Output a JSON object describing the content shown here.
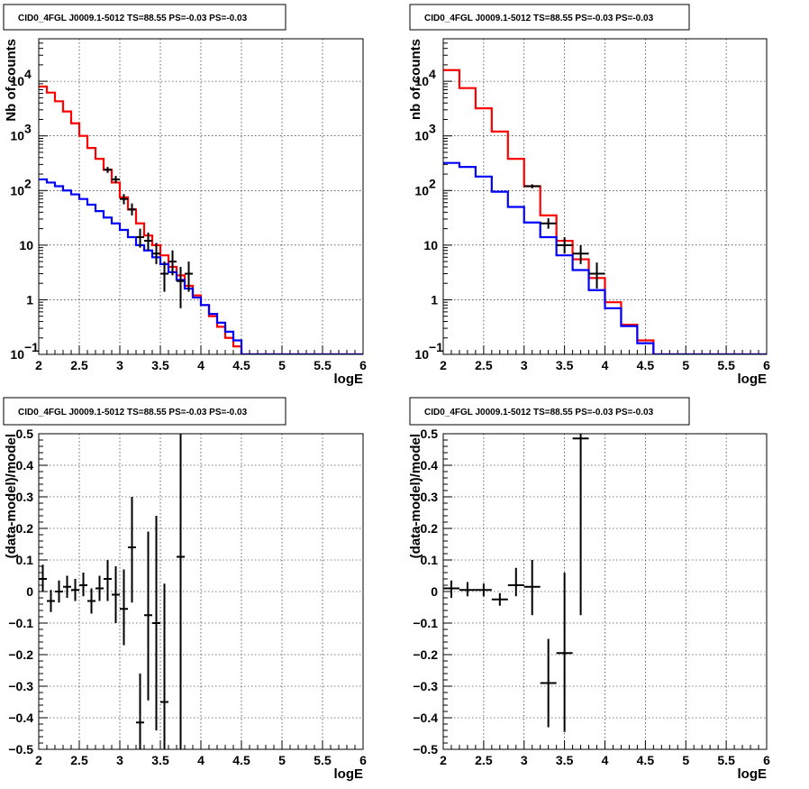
{
  "chart_data": [
    {
      "type": "line",
      "title": "CID0_4FGL J0009.1-5012 TS=88.55 PS=-0.03 PS=-0.03",
      "xlabel": "logE",
      "ylabel": "Nb of counts",
      "xlim": [
        2,
        6
      ],
      "ylim": [
        0.1,
        60000
      ],
      "y_log": true,
      "grid": true,
      "x_ticks": [
        "2",
        "2.5",
        "3",
        "3.5",
        "4",
        "4.5",
        "5",
        "5.5",
        "6"
      ],
      "y_ticks": [
        {
          "v": 0.1,
          "label": "10",
          "sup": "−1"
        },
        {
          "v": 1,
          "label": "1",
          "sup": ""
        },
        {
          "v": 10,
          "label": "10",
          "sup": ""
        },
        {
          "v": 100,
          "label": "10",
          "sup": "2"
        },
        {
          "v": 1000,
          "label": "10",
          "sup": "3"
        },
        {
          "v": 10000,
          "label": "10",
          "sup": "4"
        }
      ],
      "bin_edges": [
        2,
        2.1,
        2.2,
        2.3,
        2.4,
        2.5,
        2.6,
        2.7,
        2.8,
        2.9,
        3,
        3.1,
        3.2,
        3.3,
        3.4,
        3.5,
        3.6,
        3.7,
        3.8,
        3.9,
        4,
        4.1,
        4.2,
        4.3,
        4.4,
        4.5,
        4.6,
        4.7,
        4.8,
        4.9,
        5,
        5.1,
        5.2,
        5.3,
        5.4,
        5.5,
        5.6,
        5.7,
        5.8,
        5.9,
        6
      ],
      "series": [
        {
          "color": "#ff0000",
          "style": "step",
          "values": [
            8000,
            6200,
            4300,
            2800,
            1700,
            1000,
            600,
            380,
            240,
            140,
            75,
            45,
            25,
            15,
            10,
            6.5,
            4,
            2.8,
            1.8,
            1.2,
            0.8,
            0.5,
            0.32,
            0.2,
            0.14,
            0.1,
            0.1,
            0.1,
            0.1,
            0.1,
            0.1,
            0.1,
            0.1,
            0.1,
            0.1,
            0.1,
            0.1,
            0.1,
            0.1,
            0.1
          ]
        },
        {
          "color": "#0000ff",
          "style": "step",
          "values": [
            160,
            140,
            120,
            100,
            85,
            70,
            55,
            42,
            32,
            25,
            19,
            14,
            10,
            8,
            6,
            4.5,
            3.2,
            2.3,
            1.6,
            1.1,
            0.8,
            0.55,
            0.38,
            0.26,
            0.18,
            0.1,
            0.1,
            0.1,
            0.1,
            0.1,
            0.1,
            0.1,
            0.1,
            0.1,
            0.1,
            0.1,
            0.1,
            0.1,
            0.1,
            0.1
          ]
        },
        {
          "color": "#000000",
          "style": "errorbar",
          "points": [
            {
              "x": 2.85,
              "y": 240,
              "lo": 210,
              "hi": 270
            },
            {
              "x": 2.95,
              "y": 160,
              "lo": 138,
              "hi": 185
            },
            {
              "x": 3.05,
              "y": 70,
              "lo": 56,
              "hi": 86
            },
            {
              "x": 3.15,
              "y": 45,
              "lo": 35,
              "hi": 58
            },
            {
              "x": 3.25,
              "y": 14,
              "lo": 9,
              "hi": 20
            },
            {
              "x": 3.35,
              "y": 12,
              "lo": 8,
              "hi": 17
            },
            {
              "x": 3.45,
              "y": 7,
              "lo": 4.5,
              "hi": 11
            },
            {
              "x": 3.55,
              "y": 3,
              "lo": 1.4,
              "hi": 5
            },
            {
              "x": 3.65,
              "y": 5,
              "lo": 2.8,
              "hi": 8
            },
            {
              "x": 3.75,
              "y": 2.2,
              "lo": 0.7,
              "hi": 4
            },
            {
              "x": 3.85,
              "y": 3,
              "lo": 1.4,
              "hi": 5
            }
          ]
        }
      ]
    },
    {
      "type": "line",
      "title": "CID0_4FGL J0009.1-5012 TS=88.55 PS=-0.03 PS=-0.03",
      "xlabel": "logE",
      "ylabel": "nb of counts",
      "xlim": [
        2,
        6
      ],
      "ylim": [
        0.1,
        60000
      ],
      "y_log": true,
      "grid": true,
      "x_ticks": [
        "2",
        "2.5",
        "3",
        "3.5",
        "4",
        "4.5",
        "5",
        "5.5",
        "6"
      ],
      "y_ticks": [
        {
          "v": 0.1,
          "label": "10",
          "sup": "−1"
        },
        {
          "v": 1,
          "label": "1",
          "sup": ""
        },
        {
          "v": 10,
          "label": "10",
          "sup": ""
        },
        {
          "v": 100,
          "label": "10",
          "sup": "2"
        },
        {
          "v": 1000,
          "label": "10",
          "sup": "3"
        },
        {
          "v": 10000,
          "label": "10",
          "sup": "4"
        }
      ],
      "bin_edges": [
        2,
        2.2,
        2.4,
        2.6,
        2.8,
        3,
        3.2,
        3.4,
        3.6,
        3.8,
        4,
        4.2,
        4.4,
        4.6,
        4.8,
        5,
        5.2,
        5.4,
        5.6,
        5.8,
        6
      ],
      "series": [
        {
          "color": "#ff0000",
          "style": "step",
          "values": [
            16000,
            7500,
            3200,
            1200,
            380,
            120,
            35,
            12,
            5.5,
            2.5,
            0.9,
            0.35,
            0.18,
            0.1,
            0.1,
            0.1,
            0.1,
            0.1,
            0.1,
            0.1
          ]
        },
        {
          "color": "#0000ff",
          "style": "step",
          "values": [
            320,
            270,
            180,
            95,
            50,
            26,
            14,
            6.5,
            3.5,
            1.5,
            0.7,
            0.33,
            0.16,
            0.1,
            0.1,
            0.1,
            0.1,
            0.1,
            0.1,
            0.1
          ]
        },
        {
          "color": "#000000",
          "style": "errorbar",
          "points": [
            {
              "x": 3.1,
              "y": 120,
              "lo": 110,
              "hi": 130
            },
            {
              "x": 3.3,
              "y": 25,
              "lo": 20,
              "hi": 31
            },
            {
              "x": 3.5,
              "y": 10,
              "lo": 7,
              "hi": 14
            },
            {
              "x": 3.7,
              "y": 7,
              "lo": 4.5,
              "hi": 10
            },
            {
              "x": 3.9,
              "y": 3,
              "lo": 1.6,
              "hi": 4.8
            }
          ]
        }
      ]
    },
    {
      "type": "scatter",
      "title": "CID0_4FGL J0009.1-5012 TS=88.55 PS=-0.03 PS=-0.03",
      "xlabel": "logE",
      "ylabel": "(data-model)/model",
      "xlim": [
        2,
        6
      ],
      "ylim": [
        -0.5,
        0.5
      ],
      "y_log": false,
      "grid": true,
      "x_ticks": [
        "2",
        "2.5",
        "3",
        "3.5",
        "4",
        "4.5",
        "5",
        "5.5",
        "6"
      ],
      "y_ticks": [
        {
          "v": -0.5,
          "label": "−0.5",
          "sup": ""
        },
        {
          "v": -0.4,
          "label": "−0.4",
          "sup": ""
        },
        {
          "v": -0.3,
          "label": "−0.3",
          "sup": ""
        },
        {
          "v": -0.2,
          "label": "−0.2",
          "sup": ""
        },
        {
          "v": -0.1,
          "label": "−0.1",
          "sup": ""
        },
        {
          "v": 0,
          "label": "0",
          "sup": ""
        },
        {
          "v": 0.1,
          "label": "0.1",
          "sup": ""
        },
        {
          "v": 0.2,
          "label": "0.2",
          "sup": ""
        },
        {
          "v": 0.3,
          "label": "0.3",
          "sup": ""
        },
        {
          "v": 0.4,
          "label": "0.4",
          "sup": ""
        },
        {
          "v": 0.5,
          "label": "0.5",
          "sup": ""
        }
      ],
      "half_width": 0.05,
      "series": [
        {
          "color": "#000000",
          "style": "errorbar",
          "points": [
            {
              "x": 2.05,
              "y": 0.04,
              "lo": 0.0,
              "hi": 0.085
            },
            {
              "x": 2.15,
              "y": -0.03,
              "lo": -0.065,
              "hi": 0.005
            },
            {
              "x": 2.25,
              "y": 0.0,
              "lo": -0.035,
              "hi": 0.035
            },
            {
              "x": 2.35,
              "y": 0.015,
              "lo": -0.02,
              "hi": 0.05
            },
            {
              "x": 2.45,
              "y": 0.005,
              "lo": -0.03,
              "hi": 0.04
            },
            {
              "x": 2.55,
              "y": 0.02,
              "lo": -0.015,
              "hi": 0.06
            },
            {
              "x": 2.65,
              "y": -0.03,
              "lo": -0.07,
              "hi": 0.01
            },
            {
              "x": 2.75,
              "y": 0.01,
              "lo": -0.03,
              "hi": 0.05
            },
            {
              "x": 2.85,
              "y": 0.04,
              "lo": -0.03,
              "hi": 0.1
            },
            {
              "x": 2.95,
              "y": -0.01,
              "lo": -0.1,
              "hi": 0.08
            },
            {
              "x": 3.05,
              "y": -0.055,
              "lo": -0.17,
              "hi": 0.07
            },
            {
              "x": 3.15,
              "y": 0.14,
              "lo": -0.035,
              "hi": 0.3
            },
            {
              "x": 3.25,
              "y": -0.415,
              "lo": -0.5,
              "hi": -0.26
            },
            {
              "x": 3.35,
              "y": -0.075,
              "lo": -0.345,
              "hi": 0.19
            },
            {
              "x": 3.45,
              "y": -0.1,
              "lo": -0.44,
              "hi": 0.24
            },
            {
              "x": 3.55,
              "y": -0.35,
              "lo": -0.5,
              "hi": 0.025
            },
            {
              "x": 3.75,
              "y": 0.11,
              "lo": -0.5,
              "hi": 0.5
            }
          ]
        }
      ]
    },
    {
      "type": "scatter",
      "title": "CID0_4FGL J0009.1-5012 TS=88.55 PS=-0.03 PS=-0.03",
      "xlabel": "logE",
      "ylabel": "(data-model)/model",
      "xlim": [
        2,
        6
      ],
      "ylim": [
        -0.5,
        0.5
      ],
      "y_log": false,
      "grid": true,
      "x_ticks": [
        "2",
        "2.5",
        "3",
        "3.5",
        "4",
        "4.5",
        "5",
        "5.5",
        "6"
      ],
      "y_ticks": [
        {
          "v": -0.5,
          "label": "−0.5",
          "sup": ""
        },
        {
          "v": -0.4,
          "label": "−0.4",
          "sup": ""
        },
        {
          "v": -0.3,
          "label": "−0.3",
          "sup": ""
        },
        {
          "v": -0.2,
          "label": "−0.2",
          "sup": ""
        },
        {
          "v": -0.1,
          "label": "−0.1",
          "sup": ""
        },
        {
          "v": 0,
          "label": "0",
          "sup": ""
        },
        {
          "v": 0.1,
          "label": "0.1",
          "sup": ""
        },
        {
          "v": 0.2,
          "label": "0.2",
          "sup": ""
        },
        {
          "v": 0.3,
          "label": "0.3",
          "sup": ""
        },
        {
          "v": 0.4,
          "label": "0.4",
          "sup": ""
        },
        {
          "v": 0.5,
          "label": "0.5",
          "sup": ""
        }
      ],
      "half_width": 0.1,
      "series": [
        {
          "color": "#000000",
          "style": "errorbar",
          "points": [
            {
              "x": 2.1,
              "y": 0.01,
              "lo": -0.02,
              "hi": 0.035
            },
            {
              "x": 2.3,
              "y": 0.005,
              "lo": -0.015,
              "hi": 0.03
            },
            {
              "x": 2.5,
              "y": 0.005,
              "lo": -0.015,
              "hi": 0.025
            },
            {
              "x": 2.7,
              "y": -0.025,
              "lo": -0.045,
              "hi": -0.005
            },
            {
              "x": 2.9,
              "y": 0.02,
              "lo": -0.015,
              "hi": 0.075
            },
            {
              "x": 3.1,
              "y": 0.015,
              "lo": -0.075,
              "hi": 0.1
            },
            {
              "x": 3.3,
              "y": -0.29,
              "lo": -0.43,
              "hi": -0.15
            },
            {
              "x": 3.5,
              "y": -0.195,
              "lo": -0.445,
              "hi": 0.06
            },
            {
              "x": 3.7,
              "y": 0.485,
              "lo": -0.075,
              "hi": 0.5
            }
          ]
        }
      ]
    }
  ]
}
